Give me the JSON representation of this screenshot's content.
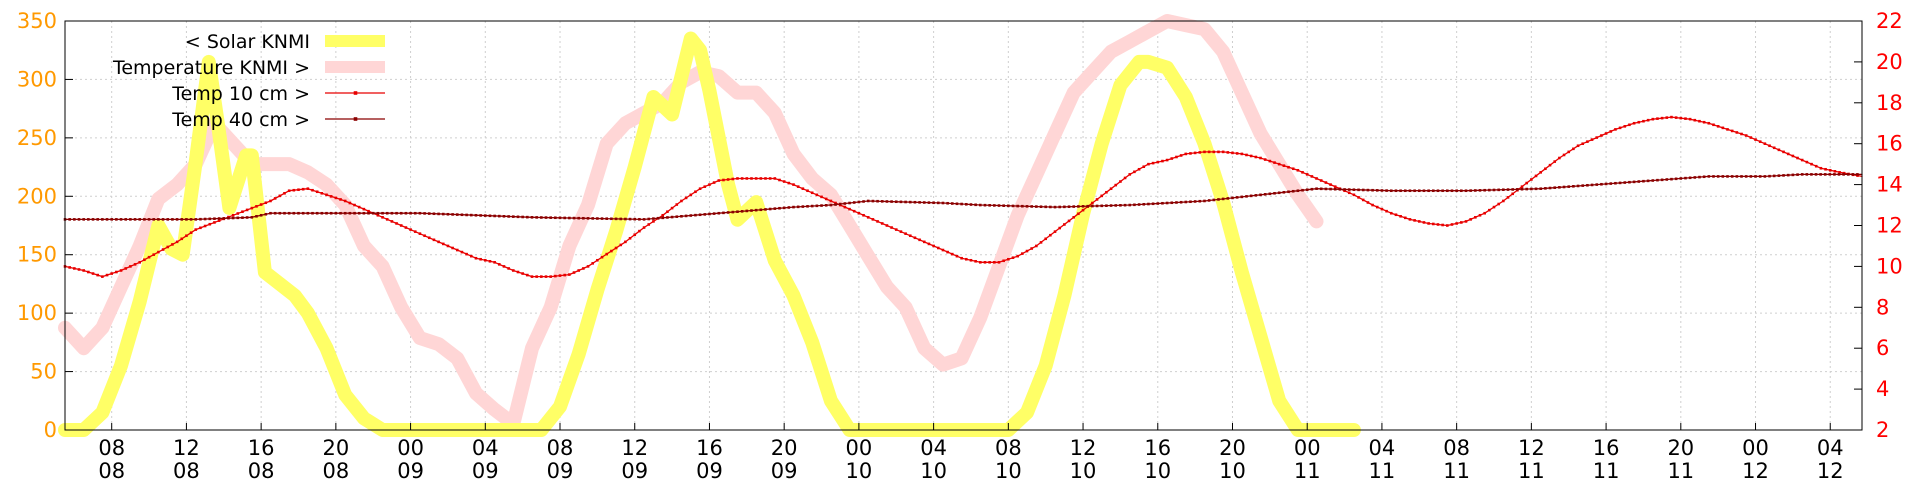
{
  "chart_data": {
    "type": "line",
    "colors": {
      "solar": "#ffff66",
      "temperature": "#ffd6d6",
      "temp10": "#e80000",
      "temp40": "#8b0000",
      "left_axis": "#ff9900",
      "right_axis": "#ff0000",
      "grid": "#cfcfcf"
    },
    "grid": true,
    "legend_position": "top-left",
    "x_range": [
      5.5,
      101.7
    ],
    "y_left": {
      "range": [
        0,
        350
      ],
      "ticks": [
        "0",
        "50",
        "100",
        "150",
        "200",
        "250",
        "300",
        "350"
      ]
    },
    "y_right": {
      "range": [
        2,
        22
      ],
      "ticks": [
        "2",
        "4",
        "6",
        "8",
        "10",
        "12",
        "14",
        "16",
        "18",
        "20",
        "22"
      ]
    },
    "x_ticks": [
      {
        "x": 8,
        "time": "08",
        "day": "08"
      },
      {
        "x": 12,
        "time": "12",
        "day": "08"
      },
      {
        "x": 16,
        "time": "16",
        "day": "08"
      },
      {
        "x": 20,
        "time": "20",
        "day": "08"
      },
      {
        "x": 24,
        "time": "00",
        "day": "09"
      },
      {
        "x": 28,
        "time": "04",
        "day": "09"
      },
      {
        "x": 32,
        "time": "08",
        "day": "09"
      },
      {
        "x": 36,
        "time": "12",
        "day": "09"
      },
      {
        "x": 40,
        "time": "16",
        "day": "09"
      },
      {
        "x": 44,
        "time": "20",
        "day": "09"
      },
      {
        "x": 48,
        "time": "00",
        "day": "10"
      },
      {
        "x": 52,
        "time": "04",
        "day": "10"
      },
      {
        "x": 56,
        "time": "08",
        "day": "10"
      },
      {
        "x": 60,
        "time": "12",
        "day": "10"
      },
      {
        "x": 64,
        "time": "16",
        "day": "10"
      },
      {
        "x": 68,
        "time": "20",
        "day": "10"
      },
      {
        "x": 72,
        "time": "00",
        "day": "11"
      },
      {
        "x": 76,
        "time": "04",
        "day": "11"
      },
      {
        "x": 80,
        "time": "08",
        "day": "11"
      },
      {
        "x": 84,
        "time": "12",
        "day": "11"
      },
      {
        "x": 88,
        "time": "16",
        "day": "11"
      },
      {
        "x": 92,
        "time": "20",
        "day": "11"
      },
      {
        "x": 96,
        "time": "00",
        "day": "12"
      },
      {
        "x": 100,
        "time": "04",
        "day": "12"
      }
    ],
    "series": [
      {
        "name": "< Solar KNMI",
        "axis": "left",
        "points": [
          [
            5.5,
            0
          ],
          [
            6.5,
            0
          ],
          [
            7.5,
            15
          ],
          [
            8.5,
            55
          ],
          [
            9.5,
            110
          ],
          [
            10.5,
            175
          ],
          [
            11.2,
            155
          ],
          [
            11.8,
            150
          ],
          [
            12.5,
            230
          ],
          [
            13.2,
            315
          ],
          [
            13.7,
            260
          ],
          [
            14.3,
            190
          ],
          [
            15.2,
            235
          ],
          [
            15.5,
            235
          ],
          [
            16.2,
            135
          ],
          [
            17,
            125
          ],
          [
            17.8,
            115
          ],
          [
            18.5,
            100
          ],
          [
            19.5,
            70
          ],
          [
            20.5,
            30
          ],
          [
            21.5,
            10
          ],
          [
            22.5,
            0
          ],
          [
            31,
            0
          ],
          [
            32,
            20
          ],
          [
            33,
            65
          ],
          [
            34,
            120
          ],
          [
            35,
            170
          ],
          [
            36,
            225
          ],
          [
            37,
            285
          ],
          [
            38,
            270
          ],
          [
            39,
            335
          ],
          [
            39.5,
            325
          ],
          [
            40,
            290
          ],
          [
            41,
            210
          ],
          [
            41.5,
            180
          ],
          [
            42.5,
            195
          ],
          [
            43.5,
            145
          ],
          [
            44.5,
            115
          ],
          [
            45.5,
            75
          ],
          [
            46.5,
            25
          ],
          [
            47.5,
            0
          ],
          [
            56,
            0
          ],
          [
            57,
            15
          ],
          [
            58,
            55
          ],
          [
            59,
            115
          ],
          [
            60,
            185
          ],
          [
            61,
            245
          ],
          [
            62,
            295
          ],
          [
            63,
            315
          ],
          [
            63.5,
            315
          ],
          [
            64.5,
            310
          ],
          [
            65.5,
            285
          ],
          [
            66.5,
            245
          ],
          [
            67.5,
            195
          ],
          [
            68.5,
            135
          ],
          [
            69.5,
            80
          ],
          [
            70.5,
            25
          ],
          [
            71.5,
            0
          ],
          [
            74.5,
            0
          ]
        ]
      },
      {
        "name": "Temperature KNMI >",
        "axis": "right",
        "points": [
          [
            5.5,
            7
          ],
          [
            6.5,
            6
          ],
          [
            7.5,
            7
          ],
          [
            8.5,
            9
          ],
          [
            9.5,
            11
          ],
          [
            10.5,
            13.3
          ],
          [
            11.5,
            14
          ],
          [
            12.5,
            15
          ],
          [
            13.5,
            17
          ],
          [
            14.5,
            16
          ],
          [
            15.5,
            15
          ],
          [
            16.5,
            15
          ],
          [
            17.5,
            15
          ],
          [
            18.5,
            14.6
          ],
          [
            19.5,
            14
          ],
          [
            20.5,
            13
          ],
          [
            21.5,
            11
          ],
          [
            22.5,
            10
          ],
          [
            23.5,
            8
          ],
          [
            24.5,
            6.5
          ],
          [
            25.5,
            6.2
          ],
          [
            26.5,
            5.5
          ],
          [
            27.5,
            3.8
          ],
          [
            28.5,
            3
          ],
          [
            29.5,
            2.3
          ],
          [
            30.5,
            6
          ],
          [
            31.5,
            8
          ],
          [
            32.5,
            11
          ],
          [
            33.5,
            13
          ],
          [
            34.5,
            16
          ],
          [
            35.5,
            17
          ],
          [
            36.5,
            17.5
          ],
          [
            37.5,
            18
          ],
          [
            38.5,
            19
          ],
          [
            39.5,
            19.5
          ],
          [
            40.5,
            19.3
          ],
          [
            41.5,
            18.5
          ],
          [
            42.5,
            18.5
          ],
          [
            43.5,
            17.5
          ],
          [
            44.5,
            15.5
          ],
          [
            45.5,
            14.3
          ],
          [
            46.5,
            13.5
          ],
          [
            47.5,
            12
          ],
          [
            48.5,
            10.5
          ],
          [
            49.5,
            9
          ],
          [
            50.5,
            8
          ],
          [
            51.5,
            6
          ],
          [
            52.5,
            5.2
          ],
          [
            53.5,
            5.5
          ],
          [
            54.5,
            7.5
          ],
          [
            55.5,
            10
          ],
          [
            56.5,
            12.5
          ],
          [
            57.5,
            14.5
          ],
          [
            58.5,
            16.5
          ],
          [
            59.5,
            18.5
          ],
          [
            60.5,
            19.5
          ],
          [
            61.5,
            20.5
          ],
          [
            62.5,
            21
          ],
          [
            63.5,
            21.5
          ],
          [
            64.5,
            22
          ],
          [
            65.5,
            21.8
          ],
          [
            66.5,
            21.6
          ],
          [
            67.5,
            20.5
          ],
          [
            68.5,
            18.5
          ],
          [
            69.5,
            16.5
          ],
          [
            70.5,
            15
          ],
          [
            71.5,
            13.5
          ],
          [
            72.5,
            12.2
          ]
        ]
      },
      {
        "name": "Temp 10 cm >",
        "axis": "right",
        "points": [
          [
            5.5,
            10
          ],
          [
            6.5,
            9.8
          ],
          [
            7.5,
            9.5
          ],
          [
            8.5,
            9.8
          ],
          [
            9.5,
            10.2
          ],
          [
            10.5,
            10.7
          ],
          [
            11.5,
            11.2
          ],
          [
            12.5,
            11.8
          ],
          [
            14.5,
            12.5
          ],
          [
            16.5,
            13.2
          ],
          [
            17.5,
            13.7
          ],
          [
            18.5,
            13.8
          ],
          [
            19.5,
            13.5
          ],
          [
            20.5,
            13.2
          ],
          [
            21.5,
            12.8
          ],
          [
            22.5,
            12.4
          ],
          [
            23.5,
            12
          ],
          [
            24.5,
            11.6
          ],
          [
            25.5,
            11.2
          ],
          [
            26.5,
            10.8
          ],
          [
            27.5,
            10.4
          ],
          [
            28.5,
            10.2
          ],
          [
            29.5,
            9.8
          ],
          [
            30.5,
            9.5
          ],
          [
            31.5,
            9.5
          ],
          [
            32.5,
            9.6
          ],
          [
            33.5,
            10
          ],
          [
            34.5,
            10.6
          ],
          [
            35.5,
            11.2
          ],
          [
            36.5,
            11.9
          ],
          [
            37.5,
            12.5
          ],
          [
            38.5,
            13.2
          ],
          [
            39.5,
            13.8
          ],
          [
            40.5,
            14.2
          ],
          [
            41.5,
            14.3
          ],
          [
            42.5,
            14.3
          ],
          [
            43.5,
            14.3
          ],
          [
            44.5,
            14
          ],
          [
            45.5,
            13.6
          ],
          [
            46.5,
            13.2
          ],
          [
            47.5,
            12.8
          ],
          [
            48.5,
            12.4
          ],
          [
            49.5,
            12
          ],
          [
            50.5,
            11.6
          ],
          [
            51.5,
            11.2
          ],
          [
            52.5,
            10.8
          ],
          [
            53.5,
            10.4
          ],
          [
            54.5,
            10.2
          ],
          [
            55.5,
            10.2
          ],
          [
            56.5,
            10.5
          ],
          [
            57.5,
            11
          ],
          [
            58.5,
            11.7
          ],
          [
            59.5,
            12.4
          ],
          [
            60.5,
            13.1
          ],
          [
            61.5,
            13.8
          ],
          [
            62.5,
            14.5
          ],
          [
            63.5,
            15
          ],
          [
            64.5,
            15.2
          ],
          [
            65.5,
            15.5
          ],
          [
            66.5,
            15.6
          ],
          [
            67.5,
            15.6
          ],
          [
            68.5,
            15.5
          ],
          [
            69.5,
            15.3
          ],
          [
            70.5,
            15
          ],
          [
            71.5,
            14.7
          ],
          [
            72.5,
            14.3
          ],
          [
            73.5,
            13.9
          ],
          [
            74.5,
            13.5
          ],
          [
            75.5,
            13
          ],
          [
            76.5,
            12.6
          ],
          [
            77.5,
            12.3
          ],
          [
            78.5,
            12.1
          ],
          [
            79.5,
            12
          ],
          [
            80.5,
            12.2
          ],
          [
            81.5,
            12.6
          ],
          [
            82.5,
            13.2
          ],
          [
            83.5,
            13.9
          ],
          [
            84.5,
            14.6
          ],
          [
            85.5,
            15.3
          ],
          [
            86.5,
            15.9
          ],
          [
            87.5,
            16.3
          ],
          [
            88.5,
            16.7
          ],
          [
            89.5,
            17
          ],
          [
            90.5,
            17.2
          ],
          [
            91.5,
            17.3
          ],
          [
            92.5,
            17.2
          ],
          [
            93.5,
            17
          ],
          [
            94.5,
            16.7
          ],
          [
            95.5,
            16.4
          ],
          [
            96.5,
            16
          ],
          [
            97.5,
            15.6
          ],
          [
            98.5,
            15.2
          ],
          [
            99.5,
            14.8
          ],
          [
            100.5,
            14.6
          ],
          [
            101.7,
            14.4
          ]
        ]
      },
      {
        "name": "Temp 40 cm >",
        "axis": "right",
        "points": [
          [
            5.5,
            12.3
          ],
          [
            8.5,
            12.3
          ],
          [
            12.5,
            12.3
          ],
          [
            15.5,
            12.4
          ],
          [
            16.5,
            12.6
          ],
          [
            20.5,
            12.6
          ],
          [
            24.5,
            12.6
          ],
          [
            30.5,
            12.4
          ],
          [
            36.5,
            12.3
          ],
          [
            40.5,
            12.6
          ],
          [
            44.5,
            12.9
          ],
          [
            46.5,
            13
          ],
          [
            48.5,
            13.2
          ],
          [
            52.5,
            13.1
          ],
          [
            54.5,
            13
          ],
          [
            58.5,
            12.9
          ],
          [
            62.5,
            13
          ],
          [
            66.5,
            13.2
          ],
          [
            68.5,
            13.4
          ],
          [
            70.5,
            13.6
          ],
          [
            72.5,
            13.8
          ],
          [
            76.5,
            13.7
          ],
          [
            80.5,
            13.7
          ],
          [
            84.5,
            13.8
          ],
          [
            87.5,
            14
          ],
          [
            90.5,
            14.2
          ],
          [
            93.5,
            14.4
          ],
          [
            96.5,
            14.4
          ],
          [
            98.5,
            14.5
          ],
          [
            101.7,
            14.5
          ]
        ]
      }
    ]
  }
}
